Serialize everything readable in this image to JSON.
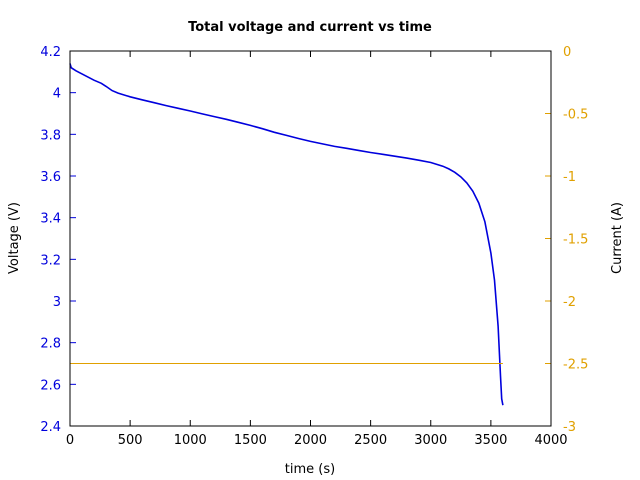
{
  "chart_data": {
    "type": "line",
    "title": "Total voltage and current vs time",
    "xlabel": "time (s)",
    "ylabel_left": "Voltage (V)",
    "ylabel_right": "Current (A)",
    "xlim": [
      0,
      4000
    ],
    "ylim_left": [
      2.4,
      4.2
    ],
    "ylim_right": [
      -3,
      0
    ],
    "x_ticks": [
      "0",
      "500",
      "1000",
      "1500",
      "2000",
      "2500",
      "3000",
      "3500",
      "4000"
    ],
    "y_left_ticks": [
      "2.4",
      "2.6",
      "2.8",
      "3",
      "3.2",
      "3.4",
      "3.6",
      "3.8",
      "4",
      "4.2"
    ],
    "y_right_ticks": [
      "-3",
      "-2.5",
      "-2",
      "-1.5",
      "-1",
      "-0.5",
      "0"
    ],
    "grid": false,
    "colors": {
      "voltage": "#0000dd",
      "current": "#e0a000",
      "left_axis": "#0000dd",
      "right_axis": "#e0a000"
    },
    "series": [
      {
        "axis": "left",
        "x": [
          0,
          10,
          50,
          100,
          200,
          260,
          300,
          350,
          400,
          500,
          600,
          700,
          800,
          900,
          1000,
          1100,
          1200,
          1300,
          1400,
          1500,
          1600,
          1700,
          1800,
          1900,
          2000,
          2100,
          2200,
          2300,
          2400,
          2500,
          2600,
          2700,
          2800,
          2900,
          3000,
          3100,
          3150,
          3200,
          3250,
          3300,
          3350,
          3400,
          3450,
          3500,
          3530,
          3560,
          3580,
          3590,
          3600
        ],
        "y": [
          4.14,
          4.12,
          4.105,
          4.09,
          4.06,
          4.045,
          4.03,
          4.01,
          3.998,
          3.98,
          3.966,
          3.952,
          3.938,
          3.925,
          3.912,
          3.898,
          3.885,
          3.872,
          3.858,
          3.843,
          3.827,
          3.81,
          3.795,
          3.78,
          3.766,
          3.754,
          3.742,
          3.733,
          3.723,
          3.713,
          3.704,
          3.695,
          3.686,
          3.676,
          3.665,
          3.647,
          3.634,
          3.618,
          3.596,
          3.567,
          3.527,
          3.47,
          3.38,
          3.23,
          3.1,
          2.88,
          2.64,
          2.53,
          2.5
        ]
      },
      {
        "axis": "right",
        "x": [
          0,
          3600
        ],
        "y": [
          -2.5,
          -2.5
        ]
      }
    ]
  }
}
